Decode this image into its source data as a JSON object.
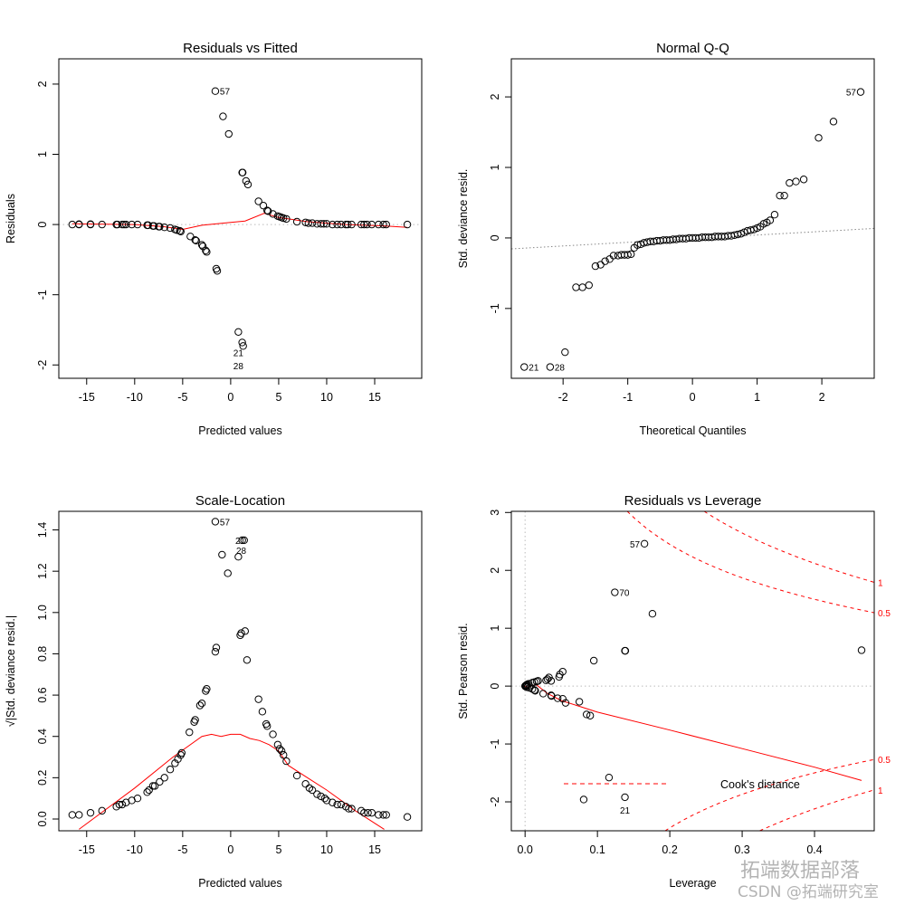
{
  "chart_data": [
    {
      "type": "scatter",
      "title": "Residuals vs Fitted",
      "xlabel": "Predicted values",
      "ylabel": "Residuals",
      "xlim": [
        -17.9,
        19.9
      ],
      "ylim": [
        -2.19,
        2.36
      ],
      "xticks": [
        -15,
        -10,
        -5,
        0,
        5,
        10,
        15
      ],
      "yticks": [
        -2,
        -1,
        0,
        1,
        2
      ],
      "hline": 0,
      "points": [
        [
          -16.5,
          0
        ],
        [
          -15.8,
          0
        ],
        [
          -15.8,
          0.005
        ],
        [
          -14.6,
          0
        ],
        [
          -14.6,
          0.005
        ],
        [
          -13.4,
          0
        ],
        [
          -11.9,
          0
        ],
        [
          -11.8,
          0
        ],
        [
          -11.3,
          0
        ],
        [
          -11.1,
          0
        ],
        [
          -10.9,
          0
        ],
        [
          -10.3,
          0
        ],
        [
          -9.7,
          0
        ],
        [
          -8.7,
          -0.01
        ],
        [
          -8.6,
          -0.01
        ],
        [
          -8.1,
          -0.02
        ],
        [
          -8.0,
          -0.02
        ],
        [
          -7.5,
          -0.03
        ],
        [
          -7.4,
          -0.03
        ],
        [
          -6.9,
          -0.04
        ],
        [
          -6.3,
          -0.05
        ],
        [
          -5.8,
          -0.07
        ],
        [
          -5.6,
          -0.08
        ],
        [
          -5.3,
          -0.09
        ],
        [
          -5.2,
          -0.1
        ],
        [
          -4.2,
          -0.17
        ],
        [
          -3.7,
          -0.22
        ],
        [
          -3.6,
          -0.23
        ],
        [
          -3.0,
          -0.29
        ],
        [
          -2.9,
          -0.31
        ],
        [
          -2.6,
          -0.37
        ],
        [
          -2.5,
          -0.39
        ],
        [
          -1.5,
          -0.63
        ],
        [
          -1.4,
          -0.66
        ],
        [
          -1.6,
          1.9
        ],
        [
          -0.8,
          1.54
        ],
        [
          -0.2,
          1.29
        ],
        [
          0.8,
          -1.53
        ],
        [
          1.2,
          -1.68
        ],
        [
          1.3,
          -1.73
        ],
        [
          1.2,
          0.74
        ],
        [
          1.25,
          0.74
        ],
        [
          1.6,
          0.62
        ],
        [
          1.8,
          0.57
        ],
        [
          2.9,
          0.33
        ],
        [
          3.4,
          0.27
        ],
        [
          3.8,
          0.2
        ],
        [
          3.9,
          0.19
        ],
        [
          4.4,
          0.15
        ],
        [
          4.9,
          0.12
        ],
        [
          5.1,
          0.11
        ],
        [
          5.3,
          0.1
        ],
        [
          5.5,
          0.09
        ],
        [
          5.8,
          0.08
        ],
        [
          6.9,
          0.04
        ],
        [
          7.8,
          0.03
        ],
        [
          8.1,
          0.02
        ],
        [
          8.5,
          0.02
        ],
        [
          9.0,
          0.01
        ],
        [
          9.4,
          0.01
        ],
        [
          9.7,
          0.01
        ],
        [
          10.0,
          0.01
        ],
        [
          10.6,
          0
        ],
        [
          11.1,
          0
        ],
        [
          11.5,
          0
        ],
        [
          12.0,
          0
        ],
        [
          12.2,
          0
        ],
        [
          12.6,
          0
        ],
        [
          13.6,
          0
        ],
        [
          13.9,
          0
        ],
        [
          14.2,
          0
        ],
        [
          14.7,
          0
        ],
        [
          15.4,
          0
        ],
        [
          15.9,
          0
        ],
        [
          16.2,
          0
        ],
        [
          18.4,
          0
        ]
      ],
      "smooth": [
        [
          -16.5,
          0.01
        ],
        [
          -10,
          0
        ],
        [
          -7,
          -0.03
        ],
        [
          -5,
          -0.07
        ],
        [
          -3,
          -0.01
        ],
        [
          0,
          0.03
        ],
        [
          1.5,
          0.05
        ],
        [
          3.5,
          0.16
        ],
        [
          5,
          0.1
        ],
        [
          8,
          0.04
        ],
        [
          12,
          0
        ],
        [
          16,
          -0.02
        ],
        [
          18.4,
          -0.04
        ]
      ],
      "labels": [
        {
          "text": "57",
          "x": -1.6,
          "y": 1.9,
          "pos": "right"
        },
        {
          "text": "21",
          "x": -0.2,
          "y": -1.82,
          "pos": "right"
        },
        {
          "text": "28",
          "x": -0.2,
          "y": -1.87,
          "pos": "right"
        }
      ]
    },
    {
      "type": "scatter",
      "title": "Normal Q-Q",
      "xlabel": "Theoretical Quantiles",
      "ylabel": "Std. deviance resid.",
      "xlim": [
        -2.8,
        2.81
      ],
      "ylim": [
        -1.99,
        2.54
      ],
      "xticks": [
        -2,
        -1,
        0,
        1,
        2
      ],
      "yticks": [
        -1,
        0,
        1,
        2
      ],
      "refline": [
        [
          -2.8,
          -0.155
        ],
        [
          2.81,
          0.135
        ]
      ],
      "points": [
        [
          -2.6,
          -1.83
        ],
        [
          -2.2,
          -1.83
        ],
        [
          -1.97,
          -1.62
        ],
        [
          -1.8,
          -0.7
        ],
        [
          -1.7,
          -0.7
        ],
        [
          -1.6,
          -0.67
        ],
        [
          -1.5,
          -0.4
        ],
        [
          -1.42,
          -0.38
        ],
        [
          -1.35,
          -0.33
        ],
        [
          -1.28,
          -0.3
        ],
        [
          -1.22,
          -0.25
        ],
        [
          -1.15,
          -0.25
        ],
        [
          -1.1,
          -0.24
        ],
        [
          -1.05,
          -0.24
        ],
        [
          -1.0,
          -0.24
        ],
        [
          -0.95,
          -0.23
        ],
        [
          -0.9,
          -0.14
        ],
        [
          -0.85,
          -0.1
        ],
        [
          -0.8,
          -0.09
        ],
        [
          -0.75,
          -0.07
        ],
        [
          -0.7,
          -0.06
        ],
        [
          -0.65,
          -0.05
        ],
        [
          -0.6,
          -0.05
        ],
        [
          -0.55,
          -0.04
        ],
        [
          -0.5,
          -0.04
        ],
        [
          -0.45,
          -0.03
        ],
        [
          -0.4,
          -0.03
        ],
        [
          -0.35,
          -0.03
        ],
        [
          -0.3,
          -0.02
        ],
        [
          -0.25,
          -0.02
        ],
        [
          -0.2,
          -0.01
        ],
        [
          -0.15,
          -0.01
        ],
        [
          -0.1,
          -0.01
        ],
        [
          -0.05,
          0
        ],
        [
          0,
          0
        ],
        [
          0.05,
          0
        ],
        [
          0.1,
          0
        ],
        [
          0.15,
          0.01
        ],
        [
          0.2,
          0.01
        ],
        [
          0.25,
          0.01
        ],
        [
          0.3,
          0.01
        ],
        [
          0.35,
          0.02
        ],
        [
          0.4,
          0.02
        ],
        [
          0.45,
          0.02
        ],
        [
          0.5,
          0.02
        ],
        [
          0.55,
          0.03
        ],
        [
          0.6,
          0.03
        ],
        [
          0.65,
          0.04
        ],
        [
          0.7,
          0.05
        ],
        [
          0.75,
          0.06
        ],
        [
          0.8,
          0.08
        ],
        [
          0.85,
          0.1
        ],
        [
          0.9,
          0.11
        ],
        [
          0.95,
          0.12
        ],
        [
          1.0,
          0.14
        ],
        [
          1.05,
          0.16
        ],
        [
          1.1,
          0.2
        ],
        [
          1.15,
          0.22
        ],
        [
          1.2,
          0.25
        ],
        [
          1.27,
          0.33
        ],
        [
          1.35,
          0.6
        ],
        [
          1.42,
          0.6
        ],
        [
          1.5,
          0.78
        ],
        [
          1.6,
          0.8
        ],
        [
          1.72,
          0.83
        ],
        [
          1.95,
          1.42
        ],
        [
          2.18,
          1.65
        ],
        [
          2.6,
          2.07
        ]
      ],
      "labels": [
        {
          "text": "57",
          "x": 2.6,
          "y": 2.07,
          "pos": "left"
        },
        {
          "text": "21",
          "x": -2.6,
          "y": -1.83,
          "pos": "right"
        },
        {
          "text": "28",
          "x": -2.2,
          "y": -1.83,
          "pos": "right"
        }
      ]
    },
    {
      "type": "scatter",
      "title": "Scale-Location",
      "xlabel": "Predicted values",
      "ylabel": "√|Std. deviance resid.|",
      "xlim": [
        -17.9,
        19.9
      ],
      "ylim": [
        -0.057,
        1.49
      ],
      "xticks": [
        -15,
        -10,
        -5,
        0,
        5,
        10,
        15
      ],
      "yticks": [
        0.0,
        0.2,
        0.4,
        0.6,
        0.8,
        1.0,
        1.2,
        1.4
      ],
      "points": [
        [
          -16.5,
          0.02
        ],
        [
          -15.8,
          0.02
        ],
        [
          -14.6,
          0.03
        ],
        [
          -13.4,
          0.04
        ],
        [
          -11.9,
          0.06
        ],
        [
          -11.6,
          0.07
        ],
        [
          -11.3,
          0.07
        ],
        [
          -10.9,
          0.08
        ],
        [
          -10.3,
          0.09
        ],
        [
          -9.7,
          0.1
        ],
        [
          -8.7,
          0.13
        ],
        [
          -8.5,
          0.14
        ],
        [
          -8.1,
          0.16
        ],
        [
          -7.9,
          0.16
        ],
        [
          -7.4,
          0.18
        ],
        [
          -6.9,
          0.2
        ],
        [
          -6.3,
          0.24
        ],
        [
          -5.8,
          0.27
        ],
        [
          -5.5,
          0.29
        ],
        [
          -5.2,
          0.31
        ],
        [
          -5.1,
          0.32
        ],
        [
          -4.3,
          0.42
        ],
        [
          -3.8,
          0.47
        ],
        [
          -3.7,
          0.48
        ],
        [
          -3.2,
          0.55
        ],
        [
          -3.0,
          0.56
        ],
        [
          -2.6,
          0.62
        ],
        [
          -2.5,
          0.63
        ],
        [
          -1.6,
          0.81
        ],
        [
          -1.5,
          0.83
        ],
        [
          -1.6,
          1.44
        ],
        [
          -0.9,
          1.28
        ],
        [
          -0.3,
          1.19
        ],
        [
          0.8,
          1.27
        ],
        [
          1.2,
          1.35
        ],
        [
          1.4,
          1.35
        ],
        [
          1.0,
          0.89
        ],
        [
          1.1,
          0.9
        ],
        [
          1.5,
          0.91
        ],
        [
          1.7,
          0.77
        ],
        [
          2.9,
          0.58
        ],
        [
          3.3,
          0.52
        ],
        [
          3.7,
          0.46
        ],
        [
          3.8,
          0.45
        ],
        [
          4.4,
          0.41
        ],
        [
          4.9,
          0.36
        ],
        [
          5.1,
          0.34
        ],
        [
          5.3,
          0.33
        ],
        [
          5.5,
          0.31
        ],
        [
          5.8,
          0.28
        ],
        [
          6.9,
          0.21
        ],
        [
          7.8,
          0.17
        ],
        [
          8.2,
          0.15
        ],
        [
          8.5,
          0.14
        ],
        [
          9.0,
          0.12
        ],
        [
          9.4,
          0.11
        ],
        [
          9.8,
          0.1
        ],
        [
          10.0,
          0.09
        ],
        [
          10.6,
          0.08
        ],
        [
          11.1,
          0.07
        ],
        [
          11.5,
          0.07
        ],
        [
          12.0,
          0.06
        ],
        [
          12.3,
          0.05
        ],
        [
          12.6,
          0.05
        ],
        [
          13.6,
          0.04
        ],
        [
          13.9,
          0.03
        ],
        [
          14.3,
          0.03
        ],
        [
          14.7,
          0.03
        ],
        [
          15.4,
          0.02
        ],
        [
          15.9,
          0.02
        ],
        [
          16.2,
          0.02
        ],
        [
          18.4,
          0.01
        ]
      ],
      "smooth": [
        [
          -15.8,
          -0.05
        ],
        [
          -10,
          0.15
        ],
        [
          -6,
          0.3
        ],
        [
          -3,
          0.4
        ],
        [
          -2,
          0.41
        ],
        [
          -1,
          0.4
        ],
        [
          0,
          0.41
        ],
        [
          1,
          0.41
        ],
        [
          2,
          0.39
        ],
        [
          3,
          0.38
        ],
        [
          4,
          0.36
        ],
        [
          5,
          0.33
        ],
        [
          6,
          0.26
        ],
        [
          8,
          0.2
        ],
        [
          10,
          0.14
        ],
        [
          13,
          0.04
        ],
        [
          16,
          -0.05
        ]
      ],
      "labels": [
        {
          "text": "57",
          "x": -1.6,
          "y": 1.44,
          "pos": "right"
        },
        {
          "text": "21",
          "x": 1.0,
          "y": 1.35,
          "pos": "center"
        },
        {
          "text": "28",
          "x": 1.1,
          "y": 1.35,
          "pos": "center"
        }
      ]
    },
    {
      "type": "scatter",
      "title": "Residuals vs Leverage",
      "xlabel": "Leverage",
      "ylabel": "Std. Pearson resid.",
      "xlim": [
        -0.019,
        0.4825
      ],
      "ylim": [
        -2.5,
        3.02
      ],
      "xticks": [
        0.0,
        0.1,
        0.2,
        0.3,
        0.4
      ],
      "yticks": [
        -2,
        -1,
        0,
        1,
        2,
        3
      ],
      "hline": 0,
      "vline": 0,
      "points": [
        [
          0.165,
          2.46
        ],
        [
          0.124,
          1.62
        ],
        [
          0.176,
          1.25
        ],
        [
          0.138,
          0.61
        ],
        [
          0.1385,
          0.61
        ],
        [
          0.095,
          0.44
        ],
        [
          0.465,
          0.62
        ],
        [
          0.052,
          0.25
        ],
        [
          0.048,
          0.2
        ],
        [
          0.047,
          0.16
        ],
        [
          0.033,
          0.15
        ],
        [
          0.031,
          0.12
        ],
        [
          0.029,
          0.1
        ],
        [
          0.036,
          0.09
        ],
        [
          0.018,
          0.09
        ],
        [
          0.016,
          0.08
        ],
        [
          0.013,
          0.07
        ],
        [
          0.01,
          0.06
        ],
        [
          0.005,
          0.04
        ],
        [
          0.003,
          0.03
        ],
        [
          0.002,
          0.02
        ],
        [
          0.001,
          0.01
        ],
        [
          0.0,
          0
        ],
        [
          0.001,
          -0.01
        ],
        [
          0.003,
          -0.02
        ],
        [
          0.006,
          -0.03
        ],
        [
          0.01,
          -0.05
        ],
        [
          0.013,
          -0.07
        ],
        [
          0.014,
          -0.08
        ],
        [
          0.025,
          -0.13
        ],
        [
          0.036,
          -0.16
        ],
        [
          0.0365,
          -0.17
        ],
        [
          0.045,
          -0.21
        ],
        [
          0.052,
          -0.22
        ],
        [
          0.056,
          -0.29
        ],
        [
          0.075,
          -0.27
        ],
        [
          0.085,
          -0.49
        ],
        [
          0.09,
          -0.51
        ],
        [
          0.116,
          -1.58
        ],
        [
          0.081,
          -1.96
        ],
        [
          0.138,
          -1.92
        ]
      ],
      "smooth": [
        [
          0,
          0
        ],
        [
          0.005,
          -0.02
        ],
        [
          0.015,
          0.03
        ],
        [
          0.03,
          -0.12
        ],
        [
          0.05,
          -0.25
        ],
        [
          0.1,
          -0.45
        ],
        [
          0.2,
          -0.76
        ],
        [
          0.3,
          -1.08
        ],
        [
          0.4,
          -1.4
        ],
        [
          0.465,
          -1.63
        ]
      ],
      "labels": [
        {
          "text": "57",
          "x": 0.165,
          "y": 2.46,
          "pos": "left"
        },
        {
          "text": "70",
          "x": 0.124,
          "y": 1.62,
          "pos": "right"
        },
        {
          "text": "21",
          "x": 0.138,
          "y": -1.92,
          "pos": "below"
        }
      ],
      "cooks": {
        "p": 3,
        "levels": [
          {
            "value": 0.5,
            "label": "0.5"
          },
          {
            "value": 1,
            "label": "1"
          }
        ],
        "legend": "Cook's distance"
      }
    }
  ],
  "watermark": {
    "line1": "拓端数据部落",
    "line2": "CSDN @拓端研究室"
  },
  "colors": {
    "points": "#000000",
    "smooth": "#ff0000",
    "reference": "#999999",
    "watermark": "#9a9a9a"
  }
}
